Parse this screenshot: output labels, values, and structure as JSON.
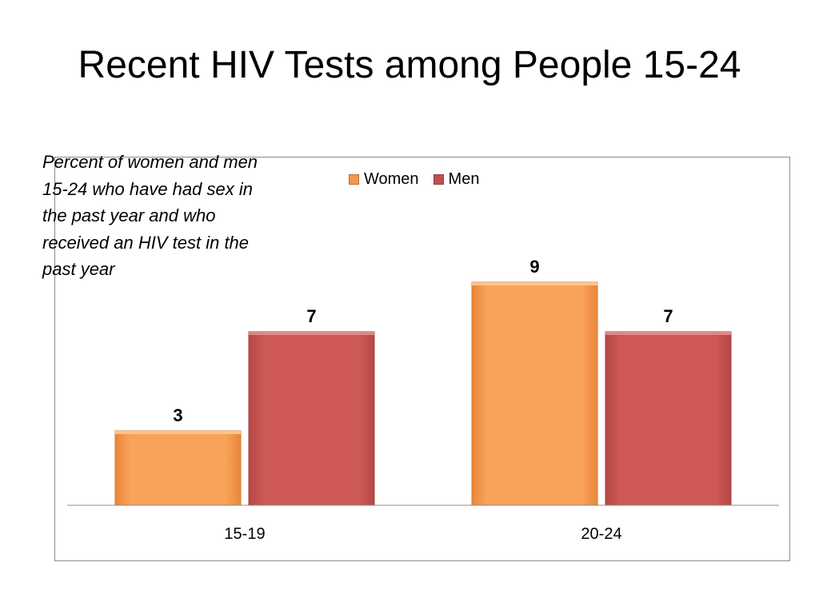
{
  "slide": {
    "title": "Recent HIV Tests among People 15-24",
    "caption": "Percent of women and men 15-24 who have had sex in the past year and who received an HIV test in the past year"
  },
  "chart_data": {
    "type": "bar",
    "title": "",
    "xlabel": "",
    "ylabel": "",
    "categories": [
      "15-19",
      "20-24"
    ],
    "series": [
      {
        "name": "Women",
        "values": [
          3,
          9
        ],
        "color": "#F79646"
      },
      {
        "name": "Men",
        "values": [
          7,
          7
        ],
        "color": "#C0504D"
      }
    ],
    "ylim": [
      0,
      10
    ],
    "grid": false,
    "legend": "top",
    "data_labels": true
  }
}
